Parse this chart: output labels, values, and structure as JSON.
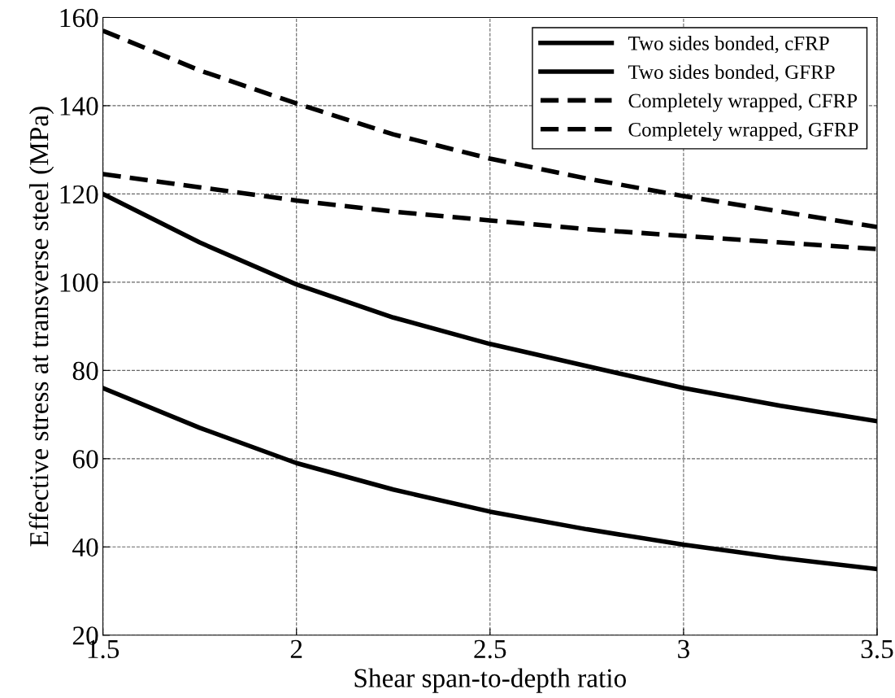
{
  "chart_data": {
    "type": "line",
    "xlabel": "Shear span-to-depth ratio",
    "ylabel": "Effective stress at transverse steel (MPa)",
    "x": [
      1.5,
      1.75,
      2,
      2.25,
      2.5,
      2.75,
      3,
      3.25,
      3.5
    ],
    "series": [
      {
        "name": "Two sides bonded, cFRP",
        "color": "#000000",
        "line_style": "solid",
        "values": [
          120,
          109,
          99.5,
          92,
          86,
          81,
          76,
          72,
          68.5
        ]
      },
      {
        "name": "Two sides bonded, GFRP",
        "color": "#000000",
        "line_style": "solid",
        "values": [
          76,
          67,
          59,
          53,
          48,
          44,
          40.5,
          37.5,
          35
        ]
      },
      {
        "name": "Completely wrapped, CFRP",
        "color": "#000000",
        "line_style": "dashed",
        "values": [
          157,
          148,
          140.5,
          133.5,
          128,
          123.5,
          119.5,
          116,
          112.5
        ]
      },
      {
        "name": "Completely wrapped, GFRP",
        "color": "#000000",
        "line_style": "dashed",
        "values": [
          124.5,
          121.5,
          118.5,
          116,
          114,
          112,
          110.5,
          109,
          107.5
        ]
      }
    ],
    "xlim": [
      1.5,
      3.5
    ],
    "xticks": [
      1.5,
      2,
      2.5,
      3,
      3.5
    ],
    "ylim": [
      20,
      160
    ],
    "yticks": [
      20,
      40,
      60,
      80,
      100,
      120,
      140,
      160
    ],
    "grid": true,
    "legend": "top right",
    "marker": "none"
  }
}
